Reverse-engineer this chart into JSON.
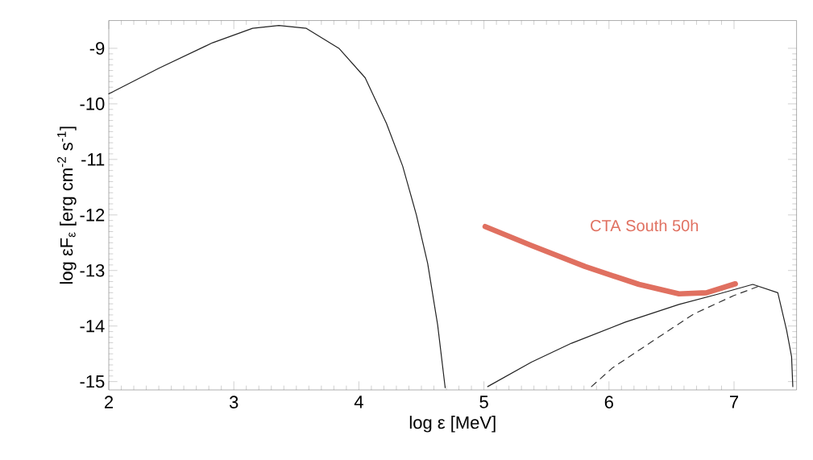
{
  "chart_data": {
    "type": "line",
    "xlabel": "log ε [MeV]",
    "ylabel": "log εF$_{ε}$ [erg cm$^{-2}$ s$^{-1}$]",
    "xlim": [
      2,
      7.5
    ],
    "ylim": [
      -15.15,
      -8.5
    ],
    "xticks": [
      2,
      3,
      4,
      5,
      6,
      7
    ],
    "yticks": [
      -9,
      -10,
      -11,
      -12,
      -13,
      -14,
      -15
    ],
    "legend": false,
    "marker": "none",
    "series": [
      {
        "color": "#222222",
        "line_style": "solid",
        "x": [
          2.0,
          2.4,
          2.83,
          3.15,
          3.36,
          3.58,
          3.84,
          4.05,
          4.22,
          4.35,
          4.46,
          4.55,
          4.63,
          4.69
        ],
        "values": [
          -9.82,
          -9.36,
          -8.9,
          -8.64,
          -8.59,
          -8.64,
          -9.0,
          -9.53,
          -10.35,
          -11.12,
          -12.0,
          -12.87,
          -13.98,
          -15.11
        ]
      },
      {
        "color": "#222222",
        "line_style": "solid",
        "x": [
          5.03,
          5.38,
          5.7,
          6.13,
          6.56,
          6.88,
          7.15,
          7.35,
          7.42,
          7.46,
          7.47
        ],
        "values": [
          -15.09,
          -14.65,
          -14.31,
          -13.93,
          -13.61,
          -13.42,
          -13.25,
          -13.4,
          -14.07,
          -14.55,
          -15.09
        ]
      },
      {
        "color": "#333333",
        "line_style": "dashed",
        "x": [
          5.86,
          6.03,
          6.35,
          6.68,
          7.0,
          7.19
        ],
        "values": [
          -15.09,
          -14.75,
          -14.27,
          -13.78,
          -13.45,
          -13.29
        ]
      },
      {
        "name": "CTA South 50h",
        "color": "#e07060",
        "line_style": "solid",
        "x": [
          5.01,
          5.38,
          5.81,
          6.24,
          6.56,
          6.78,
          7.01
        ],
        "values": [
          -12.21,
          -12.55,
          -12.93,
          -13.25,
          -13.42,
          -13.4,
          -13.24
        ]
      }
    ]
  }
}
